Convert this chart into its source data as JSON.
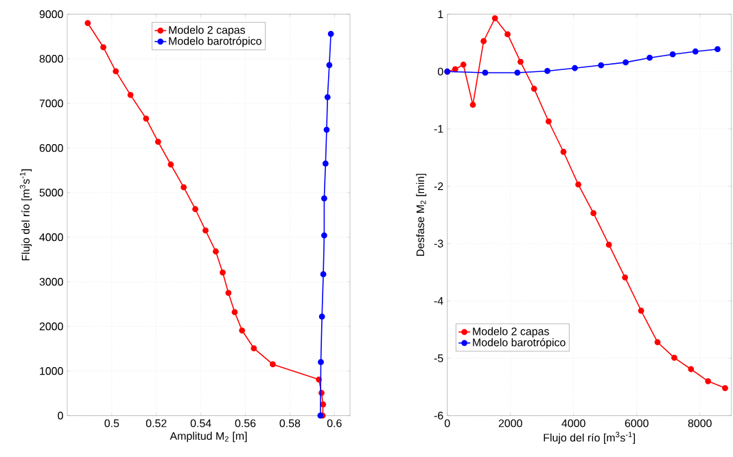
{
  "chart_data": [
    {
      "type": "line",
      "xlabel": "Amplitud M$_{2}$ [m]",
      "ylabel": "Flujo del río [m$^{3}$s$^{-1}$]",
      "xlim": [
        0.48,
        0.607
      ],
      "ylim": [
        0,
        9000
      ],
      "xticks": [
        0.5,
        0.52,
        0.54,
        0.56,
        0.58,
        0.6
      ],
      "yticks": [
        0,
        1000,
        2000,
        3000,
        4000,
        5000,
        6000,
        7000,
        8000,
        9000
      ],
      "grid": true,
      "legend": "top",
      "marker": "circle",
      "series": [
        {
          "name": "Modelo 2 capas",
          "color": "#ff0000",
          "x": [
            0.4892,
            0.4962,
            0.5018,
            0.5084,
            0.5154,
            0.5208,
            0.5265,
            0.5323,
            0.5375,
            0.5421,
            0.5467,
            0.5498,
            0.5524,
            0.5552,
            0.5585,
            0.5638,
            0.5723,
            0.593,
            0.5942,
            0.5949,
            0.5947
          ],
          "values": [
            8800,
            8260,
            7720,
            7190,
            6660,
            6140,
            5630,
            5120,
            4630,
            4150,
            3680,
            3210,
            2750,
            2320,
            1910,
            1510,
            1150,
            810,
            510,
            250,
            0
          ]
        },
        {
          "name": "Modelo barotrópico",
          "color": "#0000ff",
          "x": [
            0.5937,
            0.5939,
            0.5944,
            0.595,
            0.5954,
            0.5954,
            0.596,
            0.5965,
            0.5969,
            0.5977,
            0.5984
          ],
          "values": [
            0,
            1200,
            2220,
            3170,
            4040,
            4870,
            5650,
            6410,
            7140,
            7860,
            8560
          ]
        }
      ]
    },
    {
      "type": "line",
      "xlabel": "Flujo del río [m$^{3}$s$^{-1}$]",
      "ylabel": "Desfase M$_{2}$ [min]",
      "xlim": [
        0,
        9000
      ],
      "ylim": [
        -6,
        1
      ],
      "xticks": [
        0,
        2000,
        4000,
        6000,
        8000
      ],
      "yticks": [
        -6,
        -5,
        -4,
        -3,
        -2,
        -1,
        0,
        1
      ],
      "grid": true,
      "legend": "bottom left",
      "marker": "circle",
      "series": [
        {
          "name": "Modelo 2 capas",
          "color": "#ff0000",
          "x": [
            0,
            250,
            510,
            810,
            1150,
            1510,
            1910,
            2320,
            2750,
            3210,
            3680,
            4150,
            4630,
            5120,
            5630,
            6140,
            6660,
            7190,
            7720,
            8260,
            8800
          ],
          "values": [
            0,
            0.04,
            0.12,
            -0.58,
            0.53,
            0.93,
            0.65,
            0.17,
            -0.3,
            -0.87,
            -1.4,
            -1.97,
            -2.47,
            -3.02,
            -3.59,
            -4.17,
            -4.72,
            -4.99,
            -5.19,
            -5.4,
            -5.52
          ]
        },
        {
          "name": "Modelo barotrópico",
          "color": "#0000ff",
          "x": [
            0,
            1200,
            2220,
            3170,
            4040,
            4870,
            5650,
            6410,
            7140,
            7860,
            8560
          ],
          "values": [
            0,
            -0.02,
            -0.02,
            0.01,
            0.06,
            0.11,
            0.16,
            0.24,
            0.3,
            0.35,
            0.39
          ]
        }
      ]
    }
  ]
}
